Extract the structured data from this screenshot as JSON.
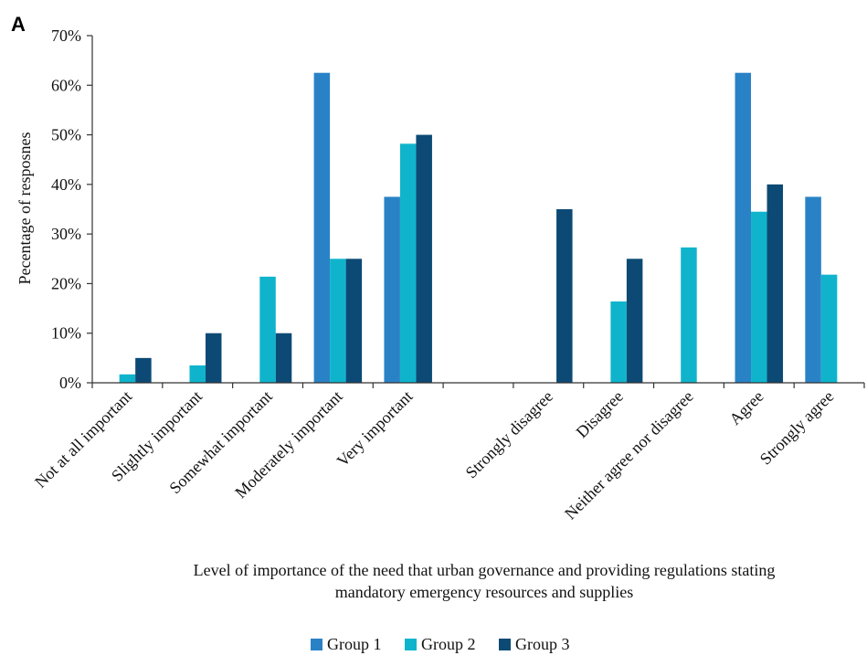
{
  "panel_label": "A",
  "chart_data": {
    "type": "bar",
    "title": "",
    "xlabel_lines": [
      "Level of importance of the need that urban governance and providing regulations stating",
      "mandatory emergency resources and supplies"
    ],
    "ylabel": "Pecentage of resposnes",
    "ylim": [
      0,
      70
    ],
    "yticks": [
      0,
      10,
      20,
      30,
      40,
      50,
      60,
      70
    ],
    "ytick_suffix": "%",
    "grid": false,
    "legend_position": "bottom-center",
    "categories": [
      "Not at all important",
      "Slightly important",
      "Somewhat important",
      "Moderately important",
      "Very important",
      "",
      "Strongly disagree",
      "Disagree",
      "Neither agree nor disagree",
      "Agree",
      "Strongly agree"
    ],
    "series": [
      {
        "name": "Group 1",
        "color": "#2a82c6",
        "values": [
          0,
          0,
          0,
          62.5,
          37.5,
          0,
          0,
          0,
          0,
          62.5,
          37.5
        ]
      },
      {
        "name": "Group 2",
        "color": "#0fb4cc",
        "values": [
          1.7,
          3.5,
          21.4,
          25,
          48.2,
          0,
          0,
          16.4,
          27.3,
          34.5,
          21.8
        ]
      },
      {
        "name": "Group 3",
        "color": "#0c4a75",
        "values": [
          5,
          10,
          10,
          25,
          50,
          0,
          35,
          25,
          0,
          40,
          0
        ]
      }
    ]
  }
}
